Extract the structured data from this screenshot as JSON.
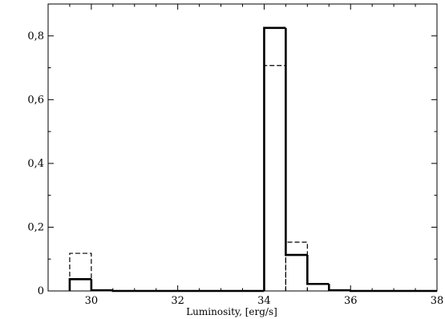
{
  "chart_data": {
    "type": "bar",
    "title": "",
    "xlabel": "Luminosity, [erg/s]",
    "ylabel": "",
    "xlim": [
      29,
      38
    ],
    "ylim": [
      0,
      0.9
    ],
    "grid": false,
    "legend": "none",
    "x_ticks": [
      {
        "value": 30,
        "label": "30"
      },
      {
        "value": 32,
        "label": "32"
      },
      {
        "value": 34,
        "label": "34"
      },
      {
        "value": 36,
        "label": "36"
      },
      {
        "value": 38,
        "label": "38"
      }
    ],
    "y_ticks": [
      {
        "value": 0,
        "label": "0"
      },
      {
        "value": 0.2,
        "label": "0,2"
      },
      {
        "value": 0.4,
        "label": "0,4"
      },
      {
        "value": 0.6,
        "label": "0,6"
      },
      {
        "value": 0.8,
        "label": "0,8"
      }
    ],
    "bin_width": 0.5,
    "series": [
      {
        "style": "solid",
        "color": "#000000",
        "bins": [
          {
            "x0": 29.5,
            "value": 0.037
          },
          {
            "x0": 30.0,
            "value": 0.002
          },
          {
            "x0": 30.5,
            "value": 0
          },
          {
            "x0": 31.0,
            "value": 0
          },
          {
            "x0": 31.5,
            "value": 0
          },
          {
            "x0": 32.0,
            "value": 0
          },
          {
            "x0": 32.5,
            "value": 0
          },
          {
            "x0": 33.0,
            "value": 0
          },
          {
            "x0": 33.5,
            "value": 0
          },
          {
            "x0": 34.0,
            "value": 0.825
          },
          {
            "x0": 34.5,
            "value": 0.113
          },
          {
            "x0": 35.0,
            "value": 0.022
          },
          {
            "x0": 35.5,
            "value": 0.002
          },
          {
            "x0": 36.0,
            "value": 0
          },
          {
            "x0": 36.5,
            "value": 0
          },
          {
            "x0": 37.0,
            "value": 0
          },
          {
            "x0": 37.5,
            "value": 0
          }
        ]
      },
      {
        "style": "dashed",
        "color": "#000000",
        "bins": [
          {
            "x0": 29.5,
            "value": 0.118
          },
          {
            "x0": 30.0,
            "value": 0
          },
          {
            "x0": 34.0,
            "value": 0.707
          },
          {
            "x0": 34.5,
            "value": 0.153
          },
          {
            "x0": 35.0,
            "value": 0
          }
        ]
      }
    ]
  }
}
